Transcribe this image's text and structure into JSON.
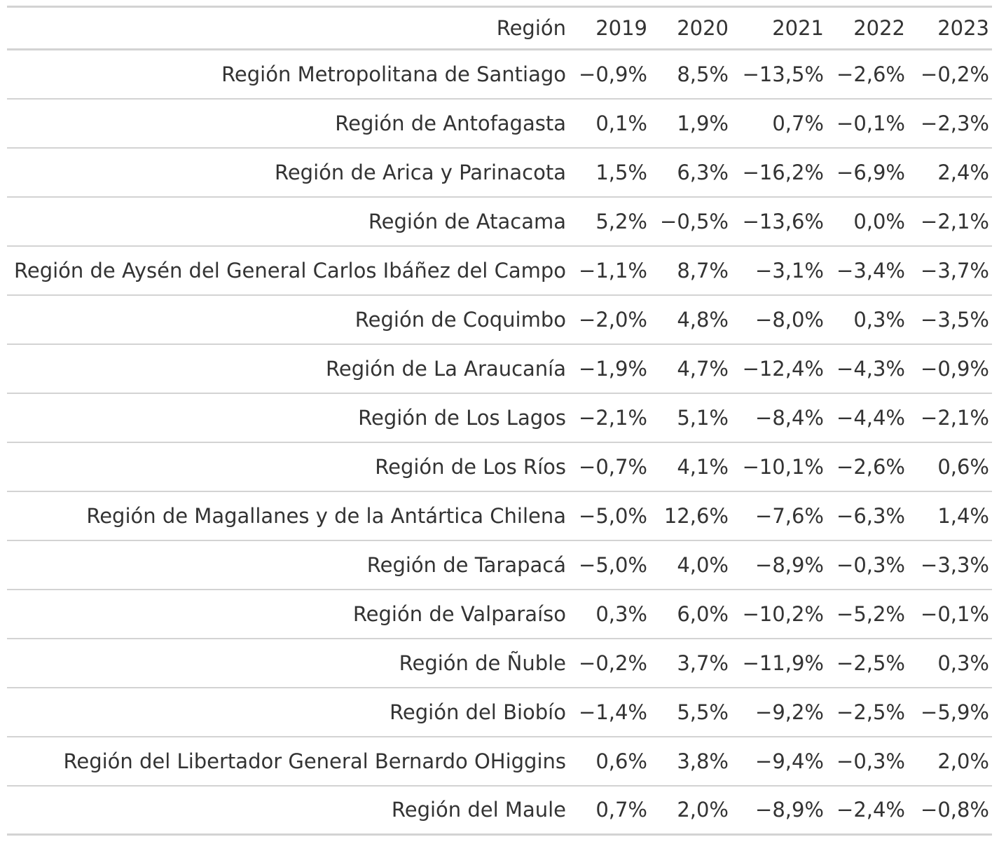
{
  "table": {
    "columns": [
      "Región",
      "2019",
      "2020",
      "2021",
      "2022",
      "2023"
    ],
    "rows": [
      [
        "Región Metropolitana de Santiago",
        "−0,9%",
        "8,5%",
        "−13,5%",
        "−2,6%",
        "−0,2%"
      ],
      [
        "Región de Antofagasta",
        "0,1%",
        "1,9%",
        "0,7%",
        "−0,1%",
        "−2,3%"
      ],
      [
        "Región de Arica y Parinacota",
        "1,5%",
        "6,3%",
        "−16,2%",
        "−6,9%",
        "2,4%"
      ],
      [
        "Región de Atacama",
        "5,2%",
        "−0,5%",
        "−13,6%",
        "0,0%",
        "−2,1%"
      ],
      [
        "Región de Aysén del General Carlos Ibáñez del Campo",
        "−1,1%",
        "8,7%",
        "−3,1%",
        "−3,4%",
        "−3,7%"
      ],
      [
        "Región de Coquimbo",
        "−2,0%",
        "4,8%",
        "−8,0%",
        "0,3%",
        "−3,5%"
      ],
      [
        "Región de La Araucanía",
        "−1,9%",
        "4,7%",
        "−12,4%",
        "−4,3%",
        "−0,9%"
      ],
      [
        "Región de Los Lagos",
        "−2,1%",
        "5,1%",
        "−8,4%",
        "−4,4%",
        "−2,1%"
      ],
      [
        "Región de Los Ríos",
        "−0,7%",
        "4,1%",
        "−10,1%",
        "−2,6%",
        "0,6%"
      ],
      [
        "Región de Magallanes y de la Antártica Chilena",
        "−5,0%",
        "12,6%",
        "−7,6%",
        "−6,3%",
        "1,4%"
      ],
      [
        "Región de Tarapacá",
        "−5,0%",
        "4,0%",
        "−8,9%",
        "−0,3%",
        "−3,3%"
      ],
      [
        "Región de Valparaíso",
        "0,3%",
        "6,0%",
        "−10,2%",
        "−5,2%",
        "−0,1%"
      ],
      [
        "Región de Ñuble",
        "−0,2%",
        "3,7%",
        "−11,9%",
        "−2,5%",
        "0,3%"
      ],
      [
        "Región del Biobío",
        "−1,4%",
        "5,5%",
        "−9,2%",
        "−2,5%",
        "−5,9%"
      ],
      [
        "Región del Libertador General Bernardo OHiggins",
        "0,6%",
        "3,8%",
        "−9,4%",
        "−0,3%",
        "2,0%"
      ],
      [
        "Región del Maule",
        "0,7%",
        "2,0%",
        "−8,9%",
        "−2,4%",
        "−0,8%"
      ]
    ]
  },
  "colors": {
    "text": "#333333",
    "rule": "#d3d3d3",
    "background": "#ffffff"
  }
}
